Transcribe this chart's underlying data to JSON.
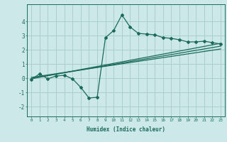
{
  "xlabel": "Humidex (Indice chaleur)",
  "bg_color": "#cce8e8",
  "grid_color": "#aacece",
  "line_color": "#1a6b5a",
  "xlim": [
    -0.5,
    23.5
  ],
  "ylim": [
    -2.7,
    5.2
  ],
  "xticks": [
    0,
    1,
    2,
    3,
    4,
    5,
    6,
    7,
    8,
    9,
    10,
    11,
    12,
    13,
    14,
    15,
    16,
    17,
    18,
    19,
    20,
    21,
    22,
    23
  ],
  "yticks": [
    -2,
    -1,
    0,
    1,
    2,
    3,
    4
  ],
  "jagged_x": [
    0,
    1,
    2,
    3,
    4,
    5,
    6,
    7,
    8,
    9,
    10,
    11,
    12,
    13,
    14,
    15,
    16,
    17,
    18,
    19,
    20,
    21,
    22,
    23
  ],
  "jagged_y": [
    -0.1,
    0.3,
    -0.05,
    0.15,
    0.2,
    -0.05,
    -0.65,
    -1.4,
    -1.35,
    2.85,
    3.35,
    4.45,
    3.6,
    3.15,
    3.1,
    3.05,
    2.85,
    2.8,
    2.7,
    2.55,
    2.55,
    2.6,
    2.5,
    2.4
  ],
  "trend1_x": [
    0,
    23
  ],
  "trend1_y": [
    -0.05,
    2.45
  ],
  "trend2_x": [
    0,
    23
  ],
  "trend2_y": [
    0.05,
    2.05
  ],
  "trend3_x": [
    0,
    23
  ],
  "trend3_y": [
    -0.02,
    2.25
  ]
}
